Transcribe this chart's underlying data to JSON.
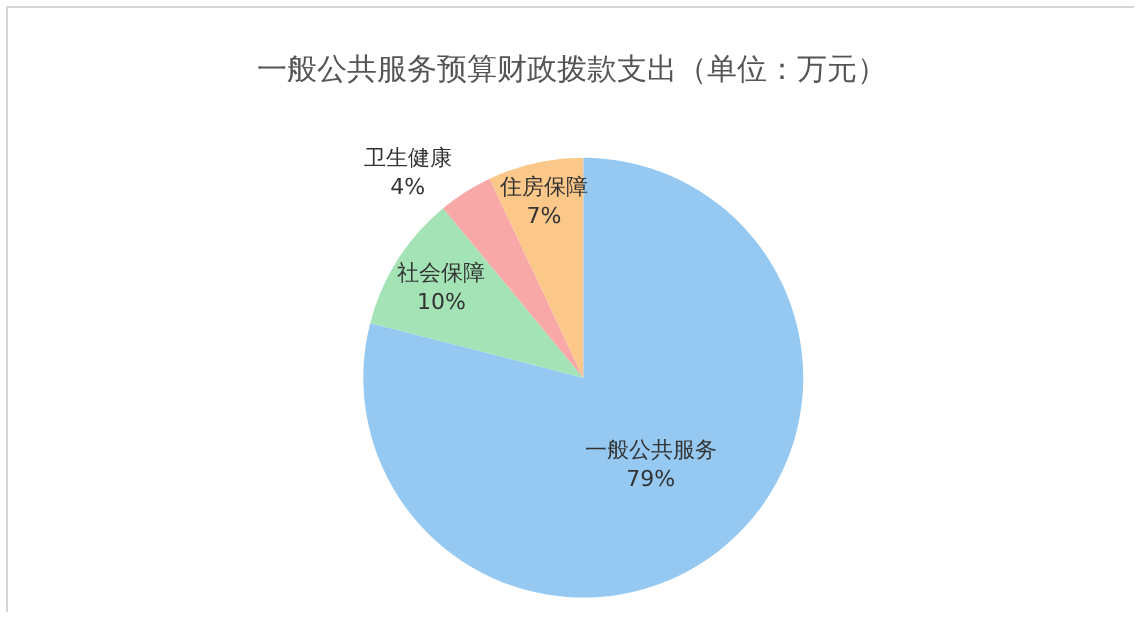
{
  "chart_data": {
    "type": "pie",
    "title": "一般公共服务预算财政拨款支出（单位：万元）",
    "categories": [
      "一般公共服务",
      "社会保障",
      "卫生健康",
      "住房保障"
    ],
    "values": [
      79,
      10,
      4,
      7
    ],
    "value_labels": [
      "79%",
      "10%",
      "4%",
      "7%"
    ],
    "colors": [
      "#95c9f2",
      "#a4e3b5",
      "#f9a8a8",
      "#fbc88a"
    ],
    "legend": false
  }
}
